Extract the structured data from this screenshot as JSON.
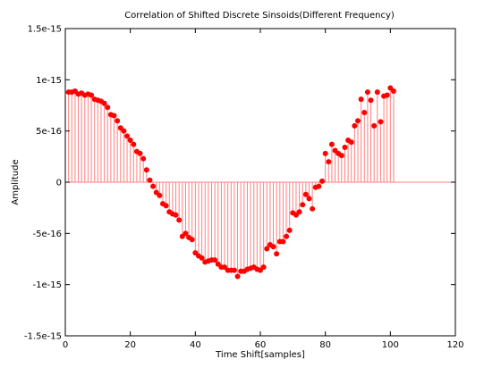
{
  "chart_data": {
    "type": "stem",
    "title": "Correlation of Shifted Discrete Sinsoids(Different Frequency)",
    "xlabel": "Time Shift[samples]",
    "ylabel": "Amplitude",
    "xlim": [
      0,
      120
    ],
    "ylim": [
      -1.5e-15,
      1.5e-15
    ],
    "x_ticks": [
      0,
      20,
      40,
      60,
      80,
      100,
      120
    ],
    "x_tick_labels": [
      "0",
      "20",
      "40",
      "60",
      "80",
      "100",
      "120"
    ],
    "y_ticks": [
      1.5e-15,
      1e-15,
      5e-16,
      0,
      -5e-16,
      -1e-15,
      -1.5e-15
    ],
    "y_tick_labels": [
      "1.5e-15",
      "1e-15",
      "5e-16",
      "0",
      "-5e-16",
      "-1e-15",
      "-1.5e-15"
    ],
    "grid": false,
    "color": "#ff0000",
    "stem_color": "#ff8080",
    "x": [
      1,
      2,
      3,
      4,
      5,
      6,
      7,
      8,
      9,
      10,
      11,
      12,
      13,
      14,
      15,
      16,
      17,
      18,
      19,
      20,
      21,
      22,
      23,
      24,
      25,
      26,
      27,
      28,
      29,
      30,
      31,
      32,
      33,
      34,
      35,
      36,
      37,
      38,
      39,
      40,
      41,
      42,
      43,
      44,
      45,
      46,
      47,
      48,
      49,
      50,
      51,
      52,
      53,
      54,
      55,
      56,
      57,
      58,
      59,
      60,
      61,
      62,
      63,
      64,
      65,
      66,
      67,
      68,
      69,
      70,
      71,
      72,
      73,
      74,
      75,
      76,
      77,
      78,
      79,
      80,
      81,
      82,
      83,
      84,
      85,
      86,
      87,
      88,
      89,
      90,
      91,
      92,
      93,
      94,
      95,
      96,
      97,
      98,
      99,
      100,
      101
    ],
    "y": [
      8.8e-16,
      8.8e-16,
      8.9e-16,
      8.6e-16,
      8.7e-16,
      8.5e-16,
      8.6e-16,
      8.5e-16,
      8.1e-16,
      8e-16,
      7.9e-16,
      7.7e-16,
      7.3e-16,
      6.6e-16,
      6.5e-16,
      6e-16,
      5.3e-16,
      5e-16,
      4.5e-16,
      4.1e-16,
      3.7e-16,
      3e-16,
      2.8e-16,
      2.3e-16,
      1.2e-16,
      2e-17,
      -4e-17,
      -1e-16,
      -1.3e-16,
      -2.1e-16,
      -2.3e-16,
      -2.9e-16,
      -3.1e-16,
      -3.2e-16,
      -3.7e-16,
      -5.3e-16,
      -5e-16,
      -5.4e-16,
      -5.6e-16,
      -6.9e-16,
      -7.2e-16,
      -7.4e-16,
      -7.8e-16,
      -7.7e-16,
      -7.6e-16,
      -7.6e-16,
      -8e-16,
      -8.3e-16,
      -8.3e-16,
      -8.6e-16,
      -8.6e-16,
      -8.6e-16,
      -9.2e-16,
      -8.7e-16,
      -8.7e-16,
      -8.5e-16,
      -8.4e-16,
      -8.3e-16,
      -8.5e-16,
      -8.6e-16,
      -8.3e-16,
      -6.5e-16,
      -6.1e-16,
      -6.3e-16,
      -7e-16,
      -5.8e-16,
      -5.8e-16,
      -5.3e-16,
      -4.7e-16,
      -3e-16,
      -3.2e-16,
      -2.9e-16,
      -2.2e-16,
      -1.2e-16,
      -1.6e-16,
      -2.6e-16,
      -5e-17,
      -4e-17,
      1e-17,
      2.8e-16,
      2e-16,
      3.7e-16,
      3.1e-16,
      2.8e-16,
      2.6e-16,
      3.4e-16,
      4.1e-16,
      3.9e-16,
      5.5e-16,
      6e-16,
      8.1e-16,
      6.8e-16,
      8.8e-16,
      8e-16,
      5.5e-16,
      8.8e-16,
      5.9e-16,
      8.4e-16,
      8.5e-16,
      9.2e-16,
      8.9e-16
    ]
  }
}
